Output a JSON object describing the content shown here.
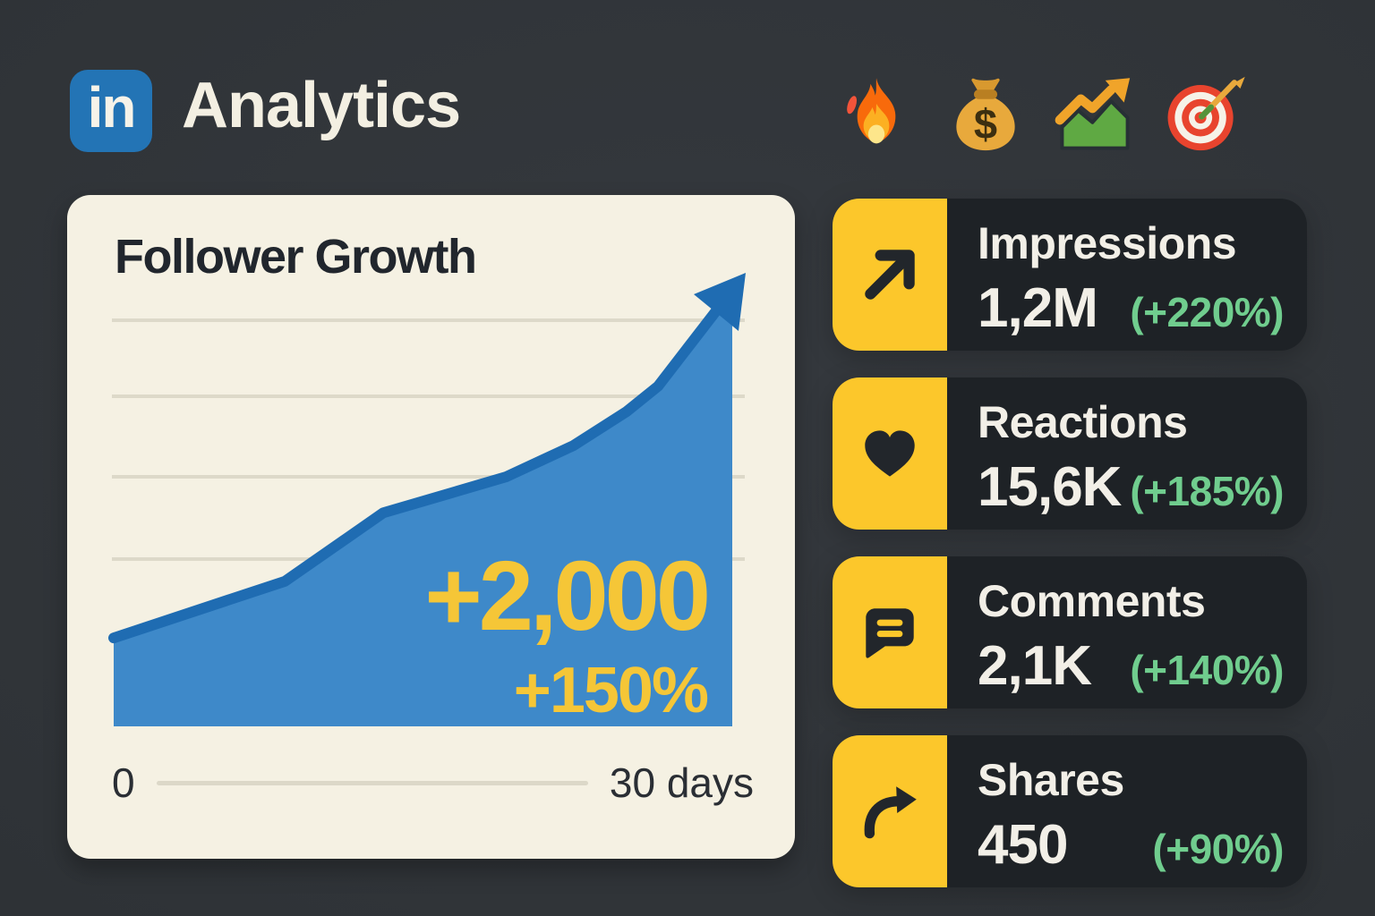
{
  "header": {
    "logo_text": "in",
    "title": "Analytics",
    "emojis": [
      {
        "name": "fire-emoji",
        "char": "🔥"
      },
      {
        "name": "money-bag-emoji",
        "char": "💰"
      },
      {
        "name": "chart-increasing-emoji",
        "char": "📈"
      },
      {
        "name": "direct-hit-emoji",
        "char": "🎯"
      }
    ]
  },
  "chart_card": {
    "title": "Follower Growth",
    "highlight_value": "+2,000",
    "highlight_percent": "+150%",
    "axis_start_label": "0",
    "axis_end_label": "30 days"
  },
  "chart_data": {
    "type": "area",
    "title": "Follower Growth",
    "xlabel": "days",
    "x_range": [
      0,
      30
    ],
    "x_tick_labels": [
      "0",
      "30 days"
    ],
    "y_axis_labels_shown": false,
    "gridlines": 4,
    "annotations": [
      "+2,000",
      "+150%"
    ],
    "total_growth": "+2,000",
    "growth_percent": "+150%",
    "arrow_end": true,
    "days": [
      0,
      8,
      13,
      19,
      22,
      25,
      26,
      30
    ],
    "followers_est": [
      1330,
      1650,
      2030,
      2230,
      2390,
      2590,
      2710,
      3330
    ],
    "points_norm": [
      {
        "x": 0.0,
        "y": 0.195
      },
      {
        "x": 0.277,
        "y": 0.32
      },
      {
        "x": 0.436,
        "y": 0.471
      },
      {
        "x": 0.634,
        "y": 0.55
      },
      {
        "x": 0.743,
        "y": 0.619
      },
      {
        "x": 0.829,
        "y": 0.694
      },
      {
        "x": 0.88,
        "y": 0.75
      },
      {
        "x": 1.0,
        "y": 0.962
      }
    ],
    "fill_color": "#3e89c9",
    "line_color": "#1f6cb2"
  },
  "stats": [
    {
      "label": "Impressions",
      "value": "1,2M",
      "percent": "(+220%)",
      "icon": "arrow-up-right-icon"
    },
    {
      "label": "Reactions",
      "value": "15,6K",
      "percent": "(+185%)",
      "icon": "heart-icon"
    },
    {
      "label": "Comments",
      "value": "2,1K",
      "percent": "(+140%)",
      "icon": "chat-bubble-icon"
    },
    {
      "label": "Shares",
      "value": "450",
      "percent": "(+90%)",
      "icon": "share-arrow-icon"
    }
  ],
  "colors": {
    "accent_yellow": "#fcc72b",
    "positive_green": "#70cd8e",
    "linkedin_blue": "#2374b5",
    "stat_card_dark": "#1e2226",
    "chart_card_cream": "#f5f1e3",
    "chart_fill_blue": "#3e89c9",
    "chart_line_blue": "#1f6cb2",
    "highlight_yellow": "#f5c637",
    "text_light": "#f2efe7",
    "text_dark": "#21262d"
  }
}
